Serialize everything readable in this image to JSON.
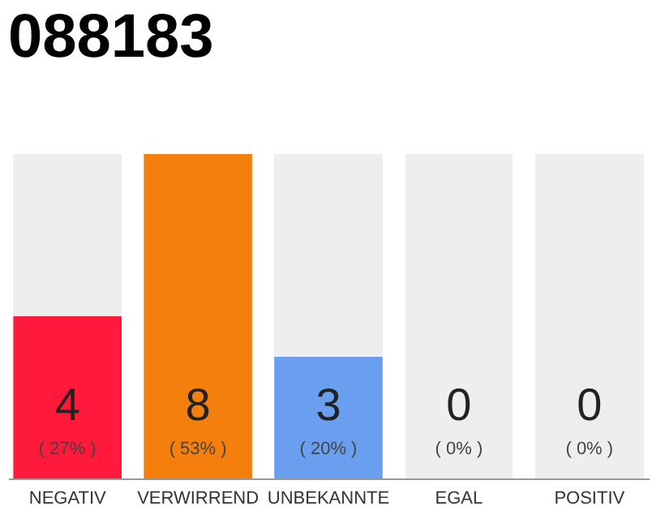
{
  "chart_data": {
    "type": "bar",
    "title": "088183",
    "categories": [
      "NEGATIV",
      "VERWIRREND",
      "UNBEKANNTE",
      "EGAL",
      "POSITIV"
    ],
    "values": [
      4,
      8,
      3,
      0,
      0
    ],
    "colors": [
      "#ff1a3c",
      "#f57f0c",
      "#6a9ff0",
      "#cccccc",
      "#cccccc"
    ],
    "data_labels": true,
    "annotations": [
      "( 27% )",
      "( 53% )",
      "( 20% )",
      "( 0% )",
      "( 0% )"
    ]
  }
}
